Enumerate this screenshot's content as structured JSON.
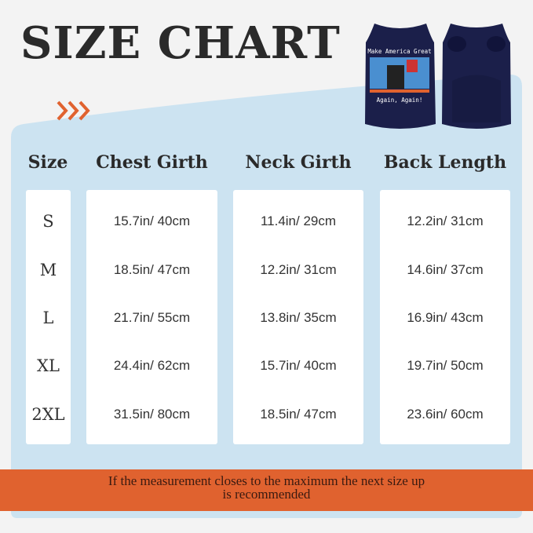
{
  "title": "SIZE CHART",
  "shirt_front_text": {
    "top": "Make America Great",
    "bottom": "Again, Again!"
  },
  "headers": [
    "Size",
    "Chest Girth",
    "Neck Girth",
    "Back Length"
  ],
  "rows": [
    {
      "size": "S",
      "chest": "15.7in/ 40cm",
      "neck": "11.4in/ 29cm",
      "back": "12.2in/ 31cm"
    },
    {
      "size": "M",
      "chest": "18.5in/ 47cm",
      "neck": "12.2in/ 31cm",
      "back": "14.6in/ 37cm"
    },
    {
      "size": "L",
      "chest": "21.7in/ 55cm",
      "neck": "13.8in/ 35cm",
      "back": "16.9in/ 43cm"
    },
    {
      "size": "XL",
      "chest": "24.4in/ 62cm",
      "neck": "15.7in/ 40cm",
      "back": "19.7in/ 50cm"
    },
    {
      "size": "2XL",
      "chest": "31.5in/ 80cm",
      "neck": "18.5in/ 47cm",
      "back": "23.6in/ 60cm"
    }
  ],
  "note": {
    "line1": "If the measurement closes to the maximum the next size up",
    "line2": "is recommended"
  },
  "colors": {
    "panel": "#cce3f1",
    "accent": "#e0622f",
    "shirt": "#1b1f4a"
  }
}
